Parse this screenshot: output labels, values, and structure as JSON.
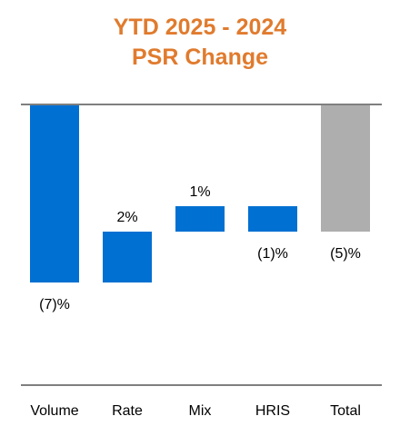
{
  "chart_data": {
    "type": "bar",
    "subtype": "waterfall",
    "title": "YTD 2025 - 2024",
    "subtitle": "PSR Change",
    "categories": [
      "Volume",
      "Rate",
      "Mix",
      "HRIS",
      "Total"
    ],
    "values": [
      -7,
      2,
      1,
      -1,
      -5
    ],
    "value_labels": [
      "(7)%",
      "2%",
      "1%",
      "(1)%",
      "(5)%"
    ],
    "value_unit": "%",
    "ylim": [
      -11,
      0
    ],
    "grid": false,
    "legend": "none",
    "colors": {
      "title": "#E07B2E",
      "delta_bar": "#0070D2",
      "total_bar": "#AEAEAE",
      "axis_line": "#7F7F7F",
      "label_text": "#000000"
    }
  }
}
